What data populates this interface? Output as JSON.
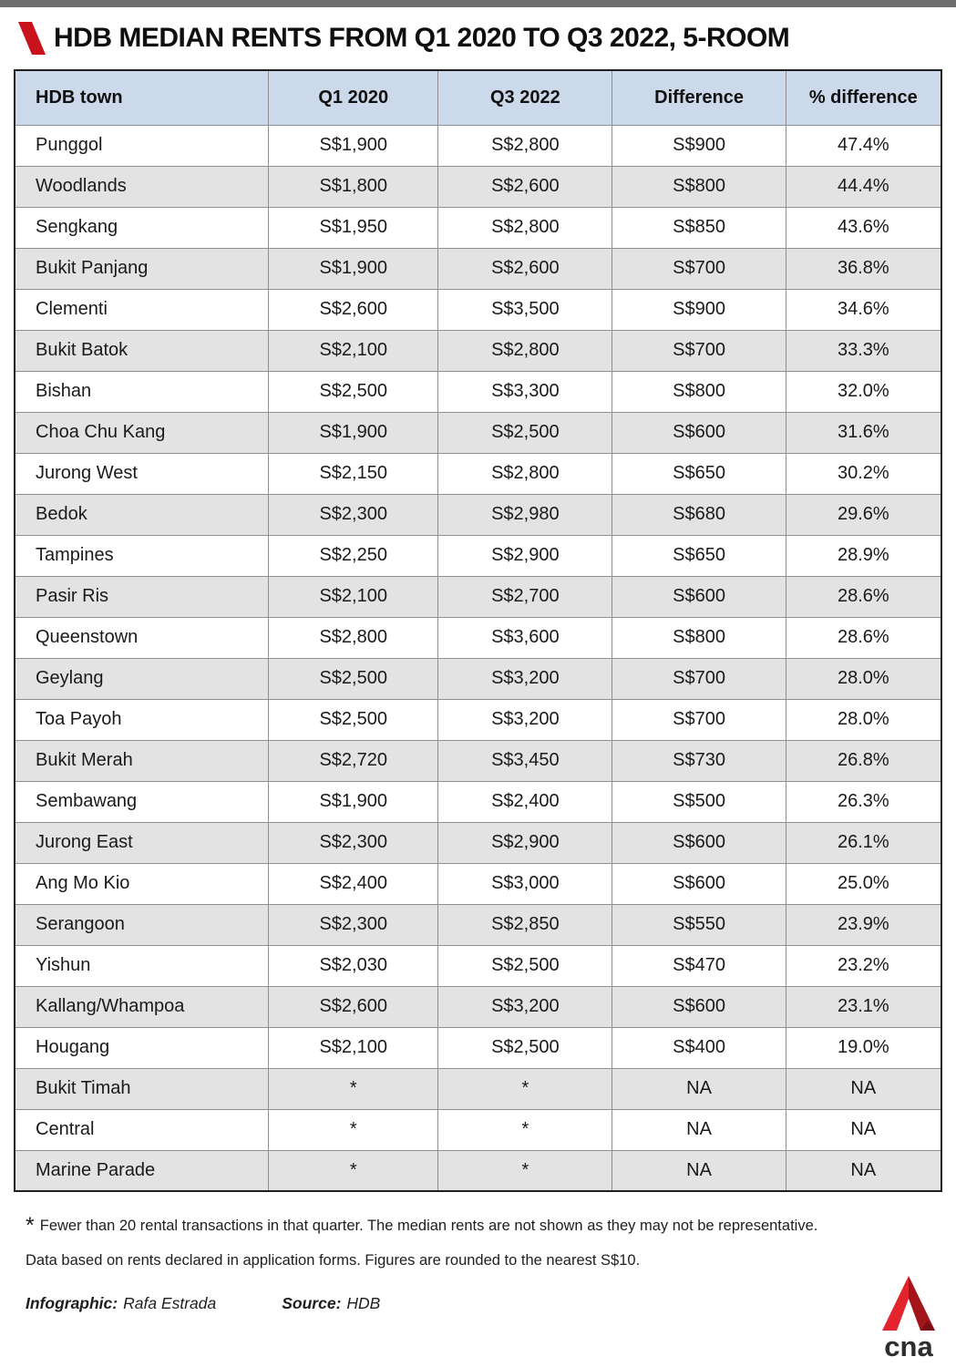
{
  "colors": {
    "topbar": "#6e6e6e",
    "header_bg": "#ccd9eb",
    "row_alt_bg": "#e3e3e3",
    "accent_red": "#c8121c"
  },
  "chart_data": {
    "type": "table",
    "title": "HDB MEDIAN RENTS FROM Q1 2020 TO Q3 2022, 5-ROOM",
    "columns": [
      "HDB town",
      "Q1 2020",
      "Q3 2022",
      "Difference",
      "% difference"
    ],
    "rows": [
      [
        "Punggol",
        "S$1,900",
        "S$2,800",
        "S$900",
        "47.4%"
      ],
      [
        "Woodlands",
        "S$1,800",
        "S$2,600",
        "S$800",
        "44.4%"
      ],
      [
        "Sengkang",
        "S$1,950",
        "S$2,800",
        "S$850",
        "43.6%"
      ],
      [
        "Bukit Panjang",
        "S$1,900",
        "S$2,600",
        "S$700",
        "36.8%"
      ],
      [
        "Clementi",
        "S$2,600",
        "S$3,500",
        "S$900",
        "34.6%"
      ],
      [
        "Bukit Batok",
        "S$2,100",
        "S$2,800",
        "S$700",
        "33.3%"
      ],
      [
        "Bishan",
        "S$2,500",
        "S$3,300",
        "S$800",
        "32.0%"
      ],
      [
        "Choa Chu Kang",
        "S$1,900",
        "S$2,500",
        "S$600",
        "31.6%"
      ],
      [
        "Jurong West",
        "S$2,150",
        "S$2,800",
        "S$650",
        "30.2%"
      ],
      [
        "Bedok",
        "S$2,300",
        "S$2,980",
        "S$680",
        "29.6%"
      ],
      [
        "Tampines",
        "S$2,250",
        "S$2,900",
        "S$650",
        "28.9%"
      ],
      [
        "Pasir Ris",
        "S$2,100",
        "S$2,700",
        "S$600",
        "28.6%"
      ],
      [
        "Queenstown",
        "S$2,800",
        "S$3,600",
        "S$800",
        "28.6%"
      ],
      [
        "Geylang",
        "S$2,500",
        "S$3,200",
        "S$700",
        "28.0%"
      ],
      [
        "Toa Payoh",
        "S$2,500",
        "S$3,200",
        "S$700",
        "28.0%"
      ],
      [
        "Bukit Merah",
        "S$2,720",
        "S$3,450",
        "S$730",
        "26.8%"
      ],
      [
        "Sembawang",
        "S$1,900",
        "S$2,400",
        "S$500",
        "26.3%"
      ],
      [
        "Jurong East",
        "S$2,300",
        "S$2,900",
        "S$600",
        "26.1%"
      ],
      [
        "Ang Mo Kio",
        "S$2,400",
        "S$3,000",
        "S$600",
        "25.0%"
      ],
      [
        "Serangoon",
        "S$2,300",
        "S$2,850",
        "S$550",
        "23.9%"
      ],
      [
        "Yishun",
        "S$2,030",
        "S$2,500",
        "S$470",
        "23.2%"
      ],
      [
        "Kallang/Whampoa",
        "S$2,600",
        "S$3,200",
        "S$600",
        "23.1%"
      ],
      [
        "Hougang",
        "S$2,100",
        "S$2,500",
        "S$400",
        "19.0%"
      ],
      [
        "Bukit Timah",
        "*",
        "*",
        "NA",
        "NA"
      ],
      [
        "Central",
        "*",
        "*",
        "NA",
        "NA"
      ],
      [
        "Marine Parade",
        "*",
        "*",
        "NA",
        "NA"
      ]
    ]
  },
  "footnotes": {
    "star": "*",
    "line1": "Fewer than 20 rental transactions in that quarter. The median rents are not shown as they may not be representative.",
    "line2": "Data based on rents declared in application forms. Figures are rounded to the nearest S$10."
  },
  "credits": {
    "infographic_label": "Infographic:",
    "infographic_value": "Rafa Estrada",
    "source_label": "Source:",
    "source_value": "HDB"
  },
  "logo": {
    "text": "cna"
  }
}
